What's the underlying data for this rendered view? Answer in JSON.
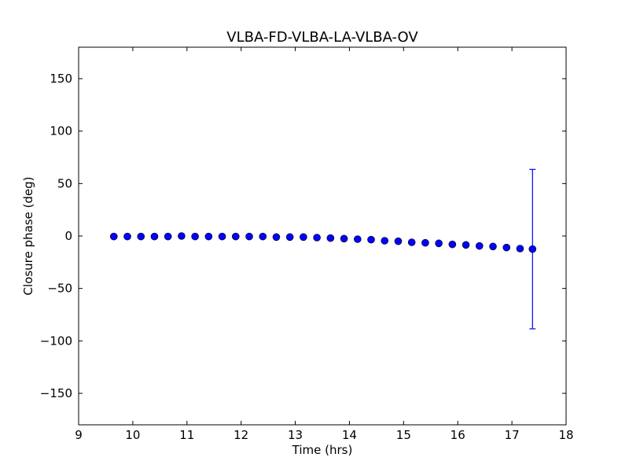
{
  "chart_data": {
    "type": "scatter",
    "title": "VLBA-FD-VLBA-LA-VLBA-OV",
    "xlabel": "Time (hrs)",
    "ylabel": "Closure phase (deg)",
    "xlim": [
      9,
      18
    ],
    "ylim": [
      -180,
      180
    ],
    "xticks": [
      9,
      10,
      11,
      12,
      13,
      14,
      15,
      16,
      17,
      18
    ],
    "yticks": [
      -150,
      -100,
      -50,
      0,
      50,
      100,
      150
    ],
    "ytick_labels": [
      "−150",
      "−100",
      "−50",
      "0",
      "50",
      "100",
      "150"
    ],
    "grid": false,
    "marker_color": "#0000ff",
    "series": [
      {
        "x": [
          9.65,
          9.9,
          10.15,
          10.4,
          10.65,
          10.9,
          11.15,
          11.4,
          11.65,
          11.9,
          12.15,
          12.4,
          12.65,
          12.9,
          13.15,
          13.4,
          13.65,
          13.9,
          14.15,
          14.4,
          14.65,
          14.9,
          15.15,
          15.4,
          15.65,
          15.9,
          16.15,
          16.4,
          16.65,
          16.9,
          17.15,
          17.38
        ],
        "y": [
          -0.5,
          -0.5,
          -0.5,
          -0.5,
          -0.5,
          0,
          -0.5,
          -0.5,
          -0.5,
          -0.5,
          -0.5,
          -0.5,
          -1,
          -1,
          -1,
          -1.5,
          -2,
          -2.5,
          -3,
          -3.5,
          -4.5,
          -5,
          -6,
          -6.5,
          -7,
          -8,
          -8.5,
          -9.5,
          -10,
          -11,
          -12,
          -12.5
        ],
        "error_low": [
          0,
          0,
          0,
          0,
          0,
          0,
          0,
          0,
          0,
          0,
          0,
          0,
          0,
          0,
          0,
          0,
          0,
          0,
          0,
          0,
          0,
          0,
          0,
          0,
          0,
          0,
          0,
          0,
          0,
          0,
          0,
          76
        ],
        "error_high": [
          0,
          0,
          0,
          0,
          0,
          0,
          0,
          0,
          0,
          0,
          0,
          0,
          0,
          0,
          0,
          0,
          0,
          0,
          0,
          0,
          0,
          0,
          0,
          0,
          0,
          0,
          0,
          0,
          0,
          0,
          0,
          76
        ]
      }
    ]
  }
}
